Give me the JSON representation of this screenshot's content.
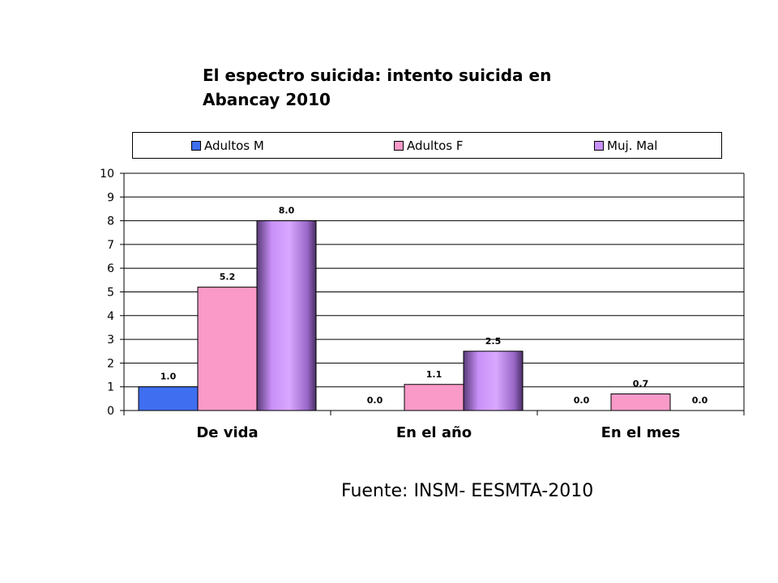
{
  "chart_data": {
    "type": "bar",
    "title": "El espectro suicida: intento suicida en Abancay 2010",
    "categories": [
      "De vida",
      "En el año",
      "En el mes"
    ],
    "series": [
      {
        "name": "Adultos M",
        "values": [
          1.0,
          0.0,
          0.0
        ],
        "labels": [
          "1.0",
          "0.0",
          "0.0"
        ],
        "color": "#3f6ef0"
      },
      {
        "name": "Adultos F",
        "values": [
          5.2,
          1.1,
          0.7
        ],
        "labels": [
          "5.2",
          "1.1",
          "0.7"
        ],
        "color": "#f99ac8"
      },
      {
        "name": "Muj. Mal",
        "values": [
          8.0,
          2.5,
          0.0
        ],
        "labels": [
          "8.0",
          "2.5",
          "0.0"
        ],
        "color": "#c890f8"
      }
    ],
    "ylim": [
      0,
      10
    ],
    "yticks": [
      "0",
      "1",
      "2",
      "3",
      "4",
      "5",
      "6",
      "7",
      "8",
      "9",
      "10"
    ],
    "grid": true,
    "legend_position": "top"
  },
  "source": "Fuente: INSM- EESMTA-2010"
}
